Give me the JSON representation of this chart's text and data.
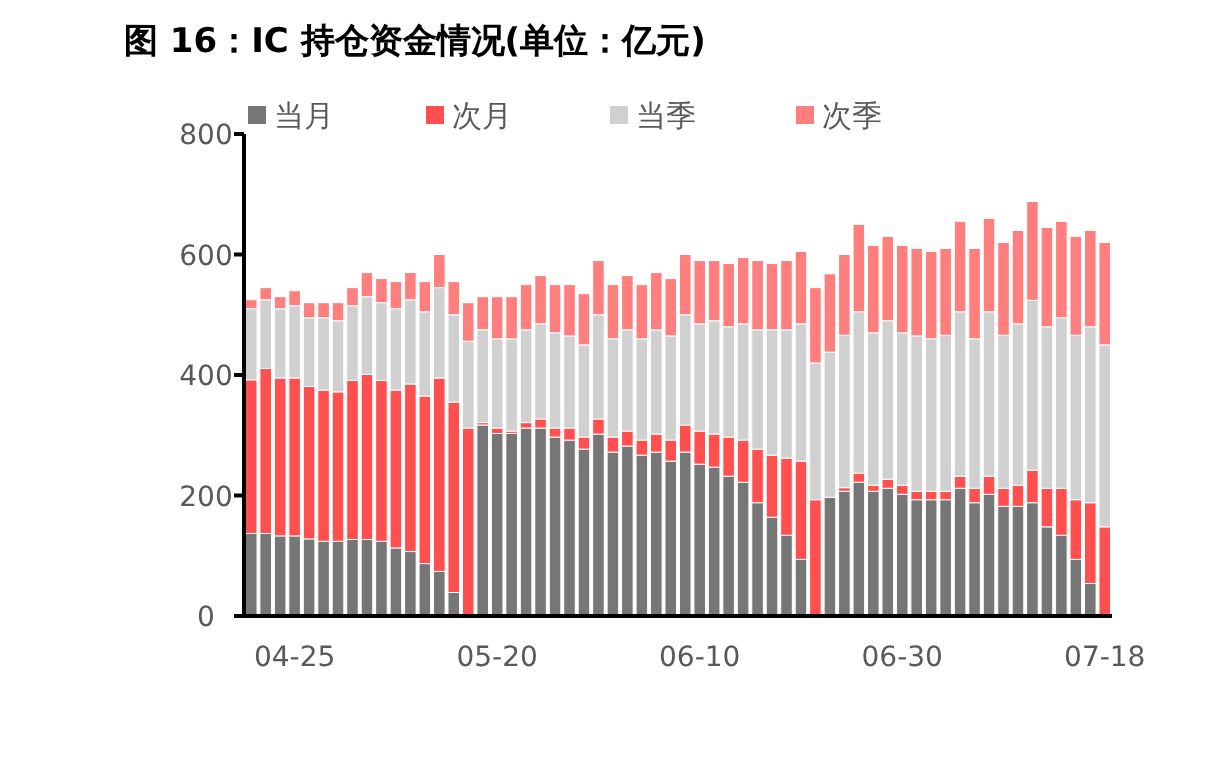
{
  "chart_data": {
    "type": "bar",
    "stacked": true,
    "title": "图 16：IC 持仓资金情况(单位：亿元)",
    "categories": [
      null,
      null,
      null,
      "04-25",
      null,
      null,
      null,
      null,
      null,
      null,
      null,
      null,
      null,
      null,
      null,
      null,
      null,
      "05-20",
      null,
      null,
      null,
      null,
      null,
      null,
      null,
      null,
      null,
      null,
      null,
      null,
      null,
      "06-10",
      null,
      null,
      null,
      null,
      null,
      null,
      null,
      null,
      null,
      null,
      null,
      null,
      null,
      "06-30",
      null,
      null,
      null,
      null,
      null,
      null,
      null,
      null,
      null,
      null,
      null,
      null,
      null,
      "07-18"
    ],
    "series": [
      {
        "name": "当月",
        "color": "#767676",
        "values": [
          137,
          137,
          133,
          133,
          128,
          124,
          124,
          127,
          127,
          124,
          113,
          107,
          87,
          74,
          39,
          0,
          317,
          303,
          303,
          312,
          312,
          297,
          292,
          277,
          302,
          272,
          282,
          267,
          272,
          257,
          272,
          252,
          247,
          232,
          222,
          188,
          164,
          134,
          94,
          0,
          197,
          207,
          222,
          207,
          212,
          202,
          193,
          193,
          193,
          212,
          188,
          202,
          182,
          182,
          188,
          148,
          134,
          94,
          54,
          0
        ]
      },
      {
        "name": "次月",
        "color": "#ff4f4f",
        "values": [
          255,
          274,
          262,
          262,
          253,
          251,
          248,
          264,
          274,
          267,
          262,
          278,
          278,
          321,
          316,
          312,
          4,
          9,
          4,
          9,
          15,
          15,
          20,
          20,
          25,
          25,
          25,
          25,
          30,
          35,
          45,
          55,
          55,
          65,
          70,
          89,
          103,
          128,
          163,
          193,
          null,
          6,
          15,
          10,
          15,
          15,
          14,
          14,
          14,
          20,
          24,
          30,
          30,
          35,
          54,
          64,
          78,
          99,
          134,
          148
        ]
      },
      {
        "name": "当季",
        "color": "#d0d0d0",
        "values": [
          118,
          114,
          115,
          120,
          114,
          120,
          118,
          124,
          129,
          129,
          135,
          140,
          140,
          150,
          145,
          144,
          154,
          148,
          153,
          154,
          158,
          158,
          153,
          153,
          173,
          163,
          168,
          168,
          173,
          173,
          183,
          178,
          188,
          183,
          193,
          198,
          208,
          213,
          228,
          227,
          241,
          253,
          268,
          253,
          263,
          253,
          258,
          253,
          259,
          273,
          248,
          273,
          254,
          268,
          282,
          268,
          283,
          273,
          292,
          302
        ]
      },
      {
        "name": "次季",
        "color": "#ff7f7f",
        "values": [
          15,
          20,
          20,
          25,
          25,
          25,
          30,
          30,
          40,
          40,
          45,
          45,
          50,
          55,
          55,
          64,
          55,
          70,
          70,
          75,
          80,
          80,
          85,
          85,
          90,
          90,
          90,
          90,
          95,
          95,
          100,
          105,
          100,
          105,
          110,
          115,
          110,
          115,
          120,
          125,
          130,
          134,
          145,
          145,
          140,
          145,
          145,
          145,
          144,
          150,
          150,
          155,
          154,
          155,
          164,
          165,
          160,
          164,
          160,
          170
        ]
      }
    ],
    "ylim": [
      0,
      800
    ],
    "yticks": [
      0,
      200,
      400,
      600,
      800
    ],
    "grid": false,
    "legend": "top"
  }
}
